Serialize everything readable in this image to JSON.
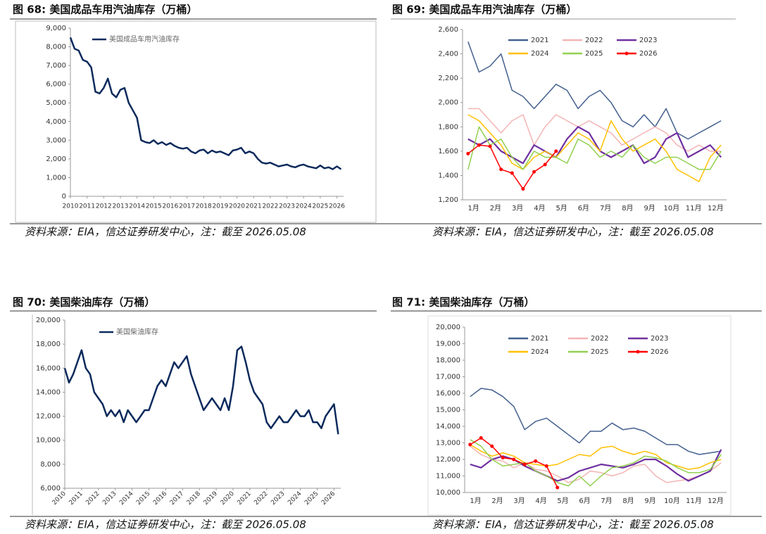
{
  "chart_data": [
    {
      "type": "line",
      "title": "图 68:  美国成品车用汽油库存（万桶）",
      "source": "资料来源：EIA，信达证券研发中心，注：截至 2026.05.08",
      "x": [
        2010,
        2010.25,
        2010.5,
        2010.75,
        2011,
        2011.25,
        2011.5,
        2011.75,
        2012,
        2012.25,
        2012.5,
        2012.75,
        2013,
        2013.25,
        2013.5,
        2013.75,
        2014,
        2014.25,
        2014.5,
        2014.75,
        2015,
        2015.25,
        2015.5,
        2015.75,
        2016,
        2016.25,
        2016.5,
        2016.75,
        2017,
        2017.25,
        2017.5,
        2017.75,
        2018,
        2018.25,
        2018.5,
        2018.75,
        2019,
        2019.25,
        2019.5,
        2019.75,
        2020,
        2020.25,
        2020.5,
        2020.75,
        2021,
        2021.25,
        2021.5,
        2021.75,
        2022,
        2022.25,
        2022.5,
        2022.75,
        2023,
        2023.25,
        2023.5,
        2023.75,
        2024,
        2024.25,
        2024.5,
        2024.75,
        2025,
        2025.25,
        2025.5,
        2025.75,
        2026,
        2026.25
      ],
      "xlim": [
        2010,
        2026.4
      ],
      "xticks": [
        2010,
        2011,
        2012,
        2013,
        2014,
        2015,
        2016,
        2017,
        2018,
        2019,
        2020,
        2021,
        2022,
        2023,
        2024,
        2025,
        2026
      ],
      "ylim": [
        0,
        9000
      ],
      "yticks": [
        0,
        {
          "value": 1000,
          "label": "1,000"
        },
        {
          "value": 2000,
          "label": "2,000"
        },
        {
          "value": 3000,
          "label": "3,000"
        },
        {
          "value": 4000,
          "label": "4,000"
        },
        {
          "value": 5000,
          "label": "5,000"
        },
        {
          "value": 6000,
          "label": "6,000"
        },
        {
          "value": 7000,
          "label": "7,000"
        },
        {
          "value": 8000,
          "label": "8,000"
        },
        {
          "value": 9000,
          "label": "9,000"
        }
      ],
      "series": [
        {
          "name": "美国成品车用汽油库存",
          "color": "#0b2a5c",
          "values": [
            8500,
            7900,
            7800,
            7300,
            7200,
            6900,
            5600,
            5500,
            5800,
            6300,
            5500,
            5300,
            5700,
            5800,
            5000,
            4600,
            4200,
            3000,
            2900,
            2850,
            3000,
            2800,
            2900,
            2750,
            2850,
            2700,
            2600,
            2550,
            2600,
            2400,
            2300,
            2450,
            2500,
            2300,
            2450,
            2350,
            2400,
            2300,
            2200,
            2450,
            2500,
            2600,
            2300,
            2400,
            2300,
            2000,
            1800,
            1750,
            1800,
            1700,
            1600,
            1650,
            1700,
            1600,
            1550,
            1650,
            1700,
            1600,
            1550,
            1500,
            1650,
            1500,
            1550,
            1450,
            1600,
            1450
          ]
        }
      ]
    },
    {
      "type": "line",
      "title": "图 69:  美国成品车用汽油库存（万桶）",
      "source": "资料来源：EIA，信达证券研发中心，注：截至 2026.05.08",
      "categories": [
        "1月",
        null,
        "2月",
        null,
        "3月",
        null,
        "4月",
        null,
        "5月",
        null,
        "6月",
        null,
        "7月",
        null,
        "8月",
        null,
        "9月",
        null,
        "10月",
        null,
        "11月",
        null,
        "12月",
        null
      ],
      "ylim": [
        1200,
        2600
      ],
      "yticks": [
        {
          "value": 1200,
          "label": "1,200"
        },
        {
          "value": 1400,
          "label": "1,400"
        },
        {
          "value": 1600,
          "label": "1,600"
        },
        {
          "value": 1800,
          "label": "1,800"
        },
        {
          "value": 2000,
          "label": "2,000"
        },
        {
          "value": 2200,
          "label": "2,200"
        },
        {
          "value": 2400,
          "label": "2,400"
        },
        {
          "value": 2600,
          "label": "2,600"
        }
      ],
      "series": [
        {
          "name": "2021",
          "color": "#44608f",
          "values": [
            2500,
            2250,
            2300,
            2400,
            2100,
            2050,
            1950,
            2050,
            2150,
            2100,
            1950,
            2050,
            2100,
            2000,
            1850,
            1800,
            1900,
            1800,
            1950,
            1750,
            1700,
            1750,
            1800,
            1850
          ]
        },
        {
          "name": "2022",
          "color": "#f4b4b4",
          "values": [
            1950,
            1950,
            1850,
            1750,
            1850,
            1900,
            1650,
            1800,
            1900,
            1850,
            1800,
            1850,
            1800,
            1750,
            1650,
            1700,
            1750,
            1800,
            1750,
            1650,
            1600,
            1650,
            1600,
            1600
          ]
        },
        {
          "name": "2023",
          "color": "#7030a0",
          "values": [
            1700,
            1650,
            1700,
            1600,
            1550,
            1500,
            1650,
            1600,
            1550,
            1700,
            1800,
            1750,
            1600,
            1550,
            1600,
            1650,
            1500,
            1550,
            1700,
            1750,
            1550,
            1600,
            1650,
            1550
          ]
        },
        {
          "name": "2024",
          "color": "#ffc000",
          "values": [
            1900,
            1850,
            1750,
            1650,
            1500,
            1450,
            1550,
            1600,
            1550,
            1650,
            1750,
            1700,
            1600,
            1850,
            1700,
            1600,
            1650,
            1700,
            1600,
            1450,
            1400,
            1350,
            1550,
            1650
          ]
        },
        {
          "name": "2025",
          "color": "#92d050",
          "values": [
            1450,
            1800,
            1650,
            1700,
            1550,
            1450,
            1600,
            1550,
            1550,
            1500,
            1700,
            1650,
            1550,
            1600,
            1550,
            1650,
            1550,
            1500,
            1550,
            1550,
            1500,
            1450,
            1450,
            1600
          ]
        },
        {
          "name": "2026",
          "color": "#ff0000",
          "markers": true,
          "values": [
            1580,
            1650,
            1640,
            1450,
            1420,
            1290,
            1430,
            1490,
            1600,
            null,
            null,
            null,
            null,
            null,
            null,
            null,
            null,
            null,
            null,
            null,
            null,
            null,
            null,
            null
          ]
        }
      ]
    },
    {
      "type": "line",
      "title": "图 70:  美国柴油库存（万桶）",
      "source": "资料来源：EIA，信达证券研发中心，注：截至 2026.05.08",
      "x": [
        2010,
        2010.25,
        2010.5,
        2010.75,
        2011,
        2011.25,
        2011.5,
        2011.75,
        2012,
        2012.25,
        2012.5,
        2012.75,
        2013,
        2013.25,
        2013.5,
        2013.75,
        2014,
        2014.25,
        2014.5,
        2014.75,
        2015,
        2015.25,
        2015.5,
        2015.75,
        2016,
        2016.25,
        2016.5,
        2016.75,
        2017,
        2017.25,
        2017.5,
        2017.75,
        2018,
        2018.25,
        2018.5,
        2018.75,
        2019,
        2019.25,
        2019.5,
        2019.75,
        2020,
        2020.25,
        2020.5,
        2020.75,
        2021,
        2021.25,
        2021.5,
        2021.75,
        2022,
        2022.25,
        2022.5,
        2022.75,
        2023,
        2023.25,
        2023.5,
        2023.75,
        2024,
        2024.25,
        2024.5,
        2024.75,
        2025,
        2025.25,
        2025.5,
        2025.75,
        2026,
        2026.25
      ],
      "xlim": [
        2010,
        2026.4
      ],
      "xticks": [
        2010,
        2011,
        2012,
        2013,
        2014,
        2015,
        2016,
        2017,
        2018,
        2019,
        2020,
        2021,
        2022,
        2023,
        2024,
        2025,
        2026
      ],
      "ylim": [
        6000,
        20000
      ],
      "yticks": [
        {
          "value": 6000,
          "label": "6,000"
        },
        {
          "value": 8000,
          "label": "8,000"
        },
        {
          "value": 10000,
          "label": "10,000"
        },
        {
          "value": 12000,
          "label": "12,000"
        },
        {
          "value": 14000,
          "label": "14,000"
        },
        {
          "value": 16000,
          "label": "16,000"
        },
        {
          "value": 18000,
          "label": "18,000"
        },
        {
          "value": 20000,
          "label": "20,000"
        }
      ],
      "series": [
        {
          "name": "美国柴油库存",
          "color": "#0b2a5c",
          "values": [
            16000,
            14800,
            15500,
            16500,
            17500,
            16000,
            15500,
            14000,
            13500,
            13000,
            12000,
            12500,
            12000,
            12500,
            11500,
            12500,
            12000,
            11500,
            12000,
            12500,
            12500,
            13500,
            14500,
            15000,
            14500,
            15500,
            16500,
            16000,
            16500,
            17000,
            15500,
            14500,
            13500,
            12500,
            13000,
            13500,
            13000,
            12500,
            13500,
            12500,
            14500,
            17500,
            17800,
            16500,
            15000,
            14000,
            13500,
            13000,
            11500,
            11000,
            11500,
            12000,
            11500,
            11500,
            12000,
            12500,
            12000,
            12000,
            12500,
            11500,
            11500,
            11000,
            12000,
            12500,
            13000,
            10500
          ]
        }
      ]
    },
    {
      "type": "line",
      "title": "图 71:  美国柴油库存（万桶）",
      "source": "资料来源：EIA，信达证券研发中心，注：截至 2026.05.08",
      "categories": [
        "1月",
        null,
        "2月",
        null,
        "3月",
        null,
        "4月",
        null,
        "5月",
        null,
        "6月",
        null,
        "7月",
        null,
        "8月",
        null,
        "9月",
        null,
        "10月",
        null,
        "11月",
        null,
        "12月",
        null
      ],
      "ylim": [
        10000,
        20000
      ],
      "yticks": [
        {
          "value": 10000,
          "label": "10,000"
        },
        {
          "value": 11000,
          "label": "11,000"
        },
        {
          "value": 12000,
          "label": "12,000"
        },
        {
          "value": 13000,
          "label": "13,000"
        },
        {
          "value": 14000,
          "label": "14,000"
        },
        {
          "value": 15000,
          "label": "15,000"
        },
        {
          "value": 16000,
          "label": "16,000"
        },
        {
          "value": 17000,
          "label": "17,000"
        },
        {
          "value": 18000,
          "label": "18,000"
        },
        {
          "value": 19000,
          "label": "19,000"
        },
        {
          "value": 20000,
          "label": "20,000"
        }
      ],
      "series": [
        {
          "name": "2021",
          "color": "#44608f",
          "values": [
            15800,
            16300,
            16200,
            15800,
            15200,
            13800,
            14300,
            14500,
            14000,
            13500,
            13000,
            13700,
            13700,
            14200,
            13800,
            13900,
            13700,
            13300,
            12900,
            12900,
            12500,
            12300,
            12400,
            12500
          ]
        },
        {
          "name": "2022",
          "color": "#f4b4b4",
          "values": [
            12800,
            12300,
            12000,
            11900,
            11500,
            11800,
            11400,
            11300,
            11000,
            10600,
            10800,
            11300,
            11200,
            11000,
            11200,
            11600,
            11700,
            11000,
            10600,
            10700,
            10800,
            11000,
            11300,
            11800
          ]
        },
        {
          "name": "2023",
          "color": "#7030a0",
          "values": [
            11700,
            11500,
            12000,
            12200,
            12000,
            11600,
            11300,
            11000,
            10700,
            10900,
            11300,
            11500,
            11700,
            11600,
            11500,
            11700,
            12000,
            12000,
            11600,
            11100,
            10700,
            11000,
            11300,
            12600
          ]
        },
        {
          "name": "2024",
          "color": "#ffc000",
          "values": [
            12900,
            12500,
            12200,
            12400,
            12200,
            11800,
            11700,
            11600,
            11700,
            12000,
            12300,
            12200,
            12700,
            12800,
            12500,
            12300,
            12500,
            12300,
            11800,
            11600,
            11400,
            11500,
            11800,
            12000
          ]
        },
        {
          "name": "2025",
          "color": "#92d050",
          "values": [
            13200,
            12800,
            12000,
            11600,
            11700,
            11800,
            11300,
            11000,
            10600,
            10400,
            11000,
            10400,
            11000,
            11500,
            11600,
            11800,
            12200,
            12100,
            11900,
            11500,
            11200,
            11200,
            11400,
            12300
          ]
        },
        {
          "name": "2026",
          "color": "#ff0000",
          "markers": true,
          "values": [
            12900,
            13300,
            12800,
            12100,
            12000,
            11700,
            11900,
            11600,
            10300,
            null,
            null,
            null,
            null,
            null,
            null,
            null,
            null,
            null,
            null,
            null,
            null,
            null,
            null,
            null
          ]
        }
      ]
    }
  ]
}
